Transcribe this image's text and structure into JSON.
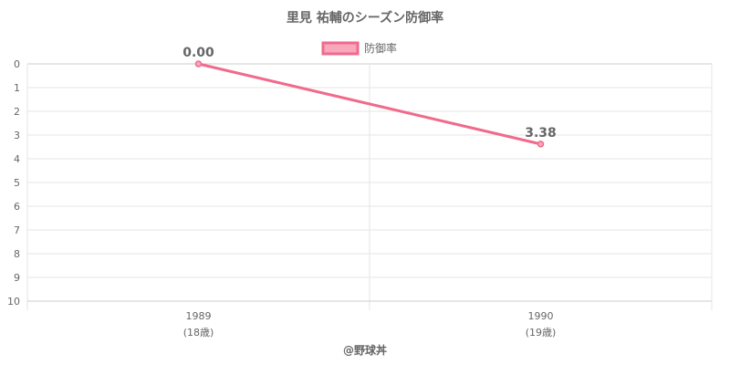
{
  "chart_data": {
    "type": "line",
    "title": "里見 祐輔のシーズン防御率",
    "x_categories": [
      {
        "year": "1989",
        "age": "(18歳)"
      },
      {
        "year": "1990",
        "age": "(19歳)"
      }
    ],
    "series": [
      {
        "name": "防御率",
        "values": [
          0.0,
          3.38
        ],
        "labels": [
          "0.00",
          "3.38"
        ],
        "color": "#f06a8c",
        "fill": "#f7a8bb"
      }
    ],
    "y_axis": {
      "min": 0,
      "max": 10,
      "reversed": true,
      "ticks": [
        "0",
        "1",
        "2",
        "3",
        "4",
        "5",
        "6",
        "7",
        "8",
        "9",
        "10"
      ]
    },
    "legend_position": "top-center",
    "grid": true
  },
  "credit": "@野球丼"
}
